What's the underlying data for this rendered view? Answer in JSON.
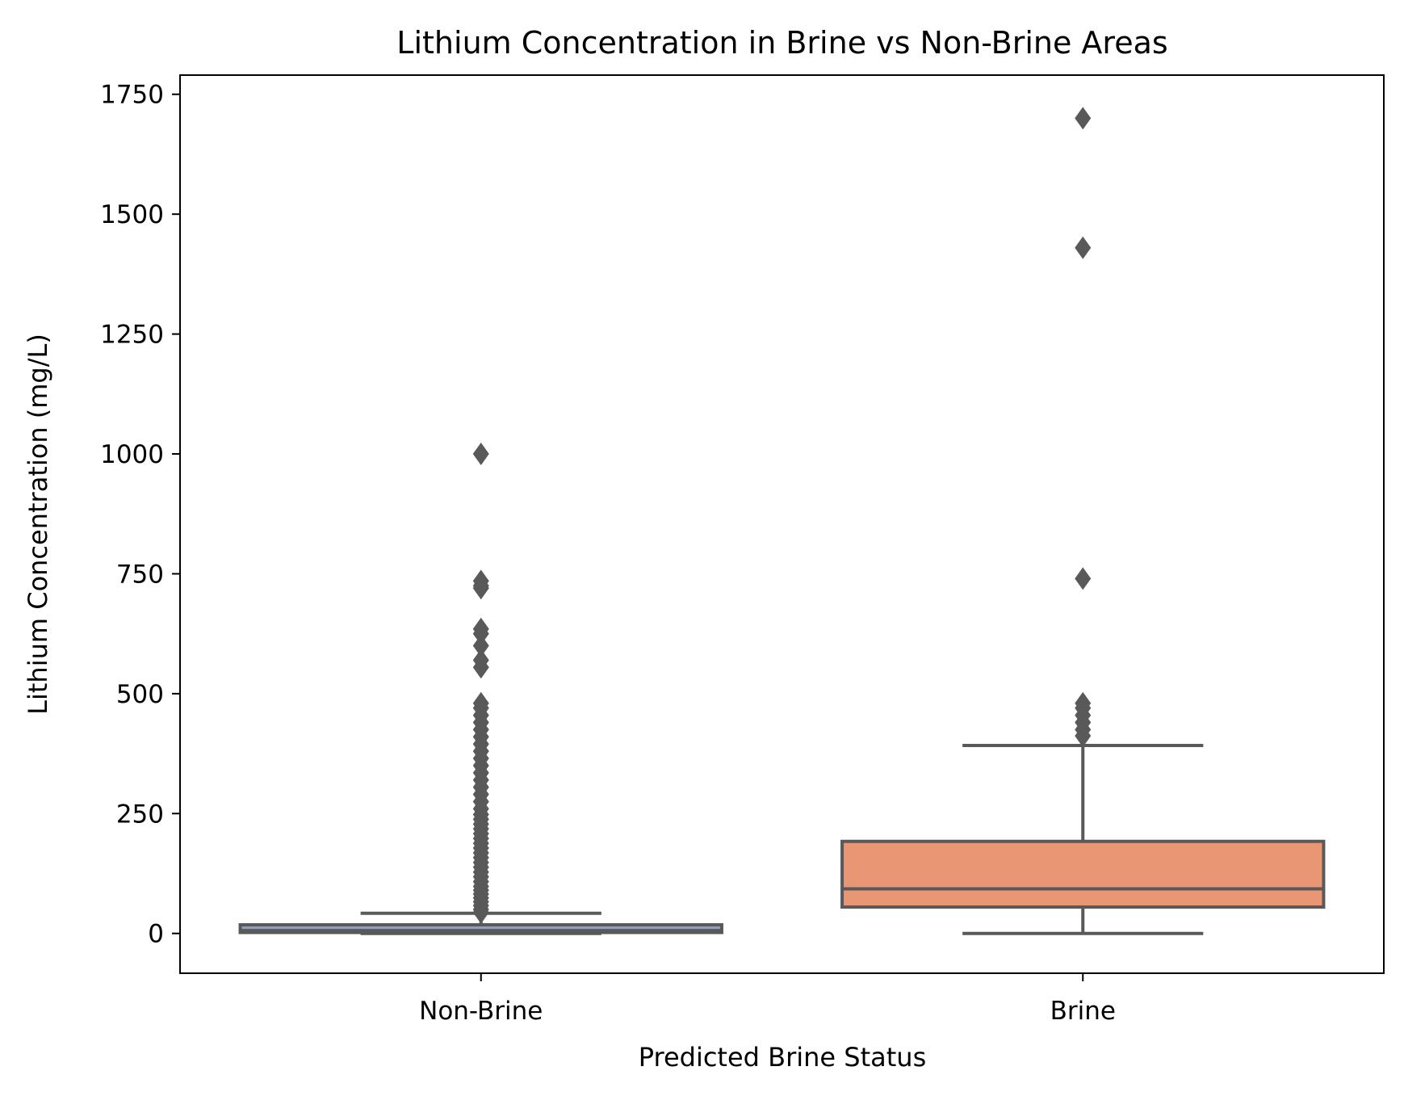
{
  "chart_data": {
    "type": "box",
    "title": "Lithium Concentration in Brine vs Non-Brine Areas",
    "xlabel": "Predicted Brine Status",
    "ylabel": "Lithium Concentration (mg/L)",
    "ylim": [
      -83,
      1790
    ],
    "yticks": [
      "0",
      "250",
      "500",
      "750",
      "1000",
      "1250",
      "1500",
      "1750"
    ],
    "ytick_values": [
      0,
      250,
      500,
      750,
      1000,
      1250,
      1500,
      1750
    ],
    "categories": [
      "Non-Brine",
      "Brine"
    ],
    "grid": false,
    "boxes": [
      {
        "category": "Non-Brine",
        "color": "#8da0cb",
        "whisker_low": 0,
        "q1": 2,
        "median": 6,
        "q3": 18,
        "whisker_high": 42,
        "outliers": [
          1000,
          735,
          725,
          720,
          635,
          625,
          600,
          570,
          555,
          480,
          470,
          455,
          440,
          425,
          410,
          395,
          380,
          365,
          350,
          335,
          320,
          305,
          290,
          275,
          260,
          248,
          238,
          228,
          218,
          208,
          198,
          188,
          178,
          168,
          158,
          148,
          138,
          128,
          118,
          108,
          98,
          90,
          82,
          74,
          66,
          58,
          50,
          44
        ]
      },
      {
        "category": "Brine",
        "color": "#e99675",
        "whisker_low": 0,
        "q1": 55,
        "median": 93,
        "q3": 192,
        "whisker_high": 392,
        "outliers": [
          1700,
          1430,
          740,
          480,
          470,
          455,
          440,
          425,
          412
        ]
      }
    ]
  },
  "style": {
    "line_color": "#595959",
    "axis_color": "#000000"
  }
}
